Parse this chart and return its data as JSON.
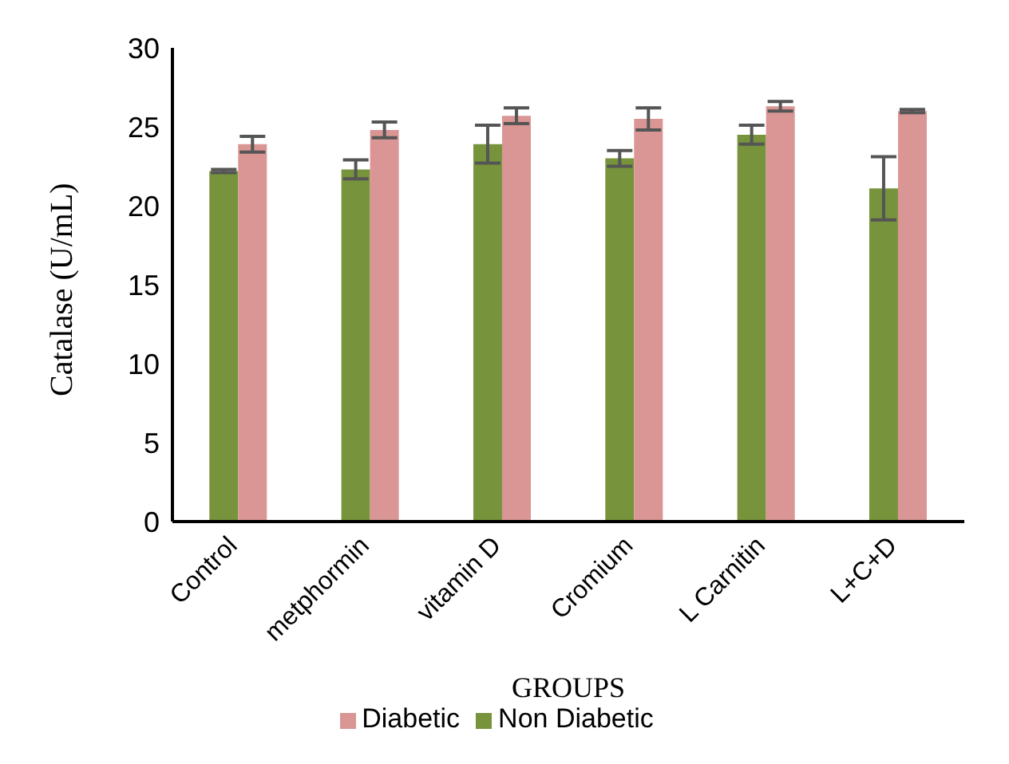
{
  "chart_data": {
    "type": "bar",
    "xlabel": "GROUPS",
    "ylabel": "Catalase (U/mL)",
    "categories": [
      "Control",
      "metphormin",
      "vitamin D",
      "Cromium",
      "L Carnitin",
      "L+C+D"
    ],
    "series": [
      {
        "name": "Non Diabetic",
        "color": "#77933c",
        "values": [
          22.2,
          22.3,
          23.9,
          23.0,
          24.5,
          21.1
        ],
        "errors": [
          0.1,
          0.6,
          1.2,
          0.5,
          0.6,
          2.0
        ]
      },
      {
        "name": "Diabetic",
        "color": "#d99694",
        "values": [
          23.9,
          24.8,
          25.7,
          25.5,
          26.3,
          26.0
        ],
        "errors": [
          0.5,
          0.5,
          0.5,
          0.7,
          0.3,
          0.1
        ]
      }
    ],
    "ylim": [
      0,
      30
    ],
    "yticks": [
      0,
      5,
      10,
      15,
      20,
      25,
      30
    ],
    "grid": false,
    "legend": "bottom"
  }
}
